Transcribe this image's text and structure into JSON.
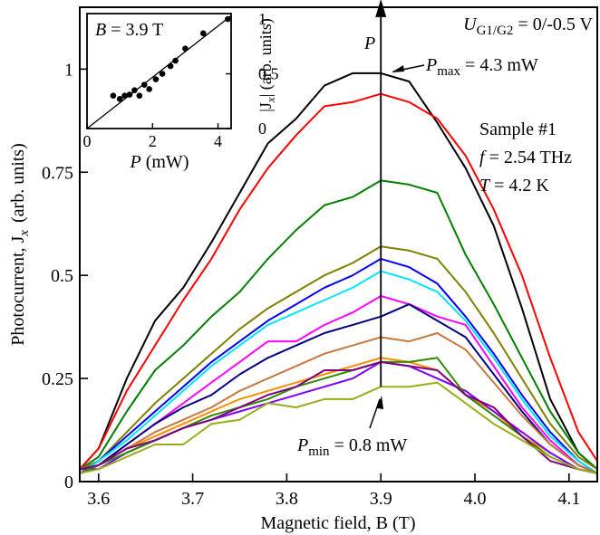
{
  "chart_data": {
    "type": "line",
    "xlabel": "Magnetic field, B (T)",
    "ylabel": "Photocurrent, J",
    "ylabel_sub": "x",
    "ylabel_units": "(arb. units)",
    "xlim": [
      3.58,
      4.13
    ],
    "ylim": [
      0,
      1.15
    ],
    "xticks": [
      {
        "v": 3.6,
        "label": "3.6"
      },
      {
        "v": 3.7,
        "label": "3.7"
      },
      {
        "v": 3.8,
        "label": "3.8"
      },
      {
        "v": 3.9,
        "label": "3.9"
      },
      {
        "v": 4.0,
        "label": "4.0"
      },
      {
        "v": 4.1,
        "label": "4.1"
      }
    ],
    "yticks": [
      {
        "v": 0,
        "label": "0"
      },
      {
        "v": 0.25,
        "label": "0.25"
      },
      {
        "v": 0.5,
        "label": "0.5"
      },
      {
        "v": 0.75,
        "label": "0.75"
      },
      {
        "v": 1.0,
        "label": "1"
      }
    ],
    "x": [
      3.58,
      3.6,
      3.63,
      3.66,
      3.69,
      3.72,
      3.75,
      3.78,
      3.81,
      3.84,
      3.87,
      3.9,
      3.93,
      3.96,
      3.99,
      4.02,
      4.05,
      4.08,
      4.11,
      4.13
    ],
    "series": [
      {
        "color": "#000000",
        "values": [
          0.03,
          0.08,
          0.25,
          0.39,
          0.47,
          0.58,
          0.7,
          0.82,
          0.88,
          0.96,
          0.99,
          0.99,
          0.97,
          0.87,
          0.76,
          0.62,
          0.42,
          0.2,
          0.07,
          0.03
        ]
      },
      {
        "color": "#ff0000",
        "values": [
          0.03,
          0.08,
          0.22,
          0.33,
          0.44,
          0.54,
          0.66,
          0.76,
          0.84,
          0.91,
          0.92,
          0.94,
          0.92,
          0.88,
          0.79,
          0.66,
          0.5,
          0.3,
          0.12,
          0.05
        ]
      },
      {
        "color": "#008000",
        "values": [
          0.03,
          0.06,
          0.17,
          0.27,
          0.33,
          0.4,
          0.46,
          0.54,
          0.61,
          0.67,
          0.69,
          0.73,
          0.72,
          0.7,
          0.55,
          0.43,
          0.3,
          0.17,
          0.07,
          0.03
        ]
      },
      {
        "color": "#808000",
        "values": [
          0.03,
          0.05,
          0.12,
          0.19,
          0.25,
          0.31,
          0.37,
          0.42,
          0.46,
          0.5,
          0.53,
          0.57,
          0.56,
          0.54,
          0.46,
          0.36,
          0.25,
          0.14,
          0.06,
          0.03
        ]
      },
      {
        "color": "#0000ff",
        "values": [
          0.02,
          0.05,
          0.11,
          0.17,
          0.23,
          0.29,
          0.34,
          0.39,
          0.43,
          0.47,
          0.5,
          0.54,
          0.52,
          0.48,
          0.4,
          0.31,
          0.21,
          0.12,
          0.05,
          0.02
        ]
      },
      {
        "color": "#00e5ff",
        "values": [
          0.02,
          0.05,
          0.1,
          0.16,
          0.22,
          0.28,
          0.33,
          0.38,
          0.41,
          0.44,
          0.47,
          0.51,
          0.49,
          0.46,
          0.39,
          0.3,
          0.2,
          0.11,
          0.05,
          0.02
        ]
      },
      {
        "color": "#ff00ff",
        "values": [
          0.02,
          0.04,
          0.09,
          0.14,
          0.19,
          0.24,
          0.29,
          0.34,
          0.34,
          0.38,
          0.41,
          0.45,
          0.43,
          0.4,
          0.38,
          0.28,
          0.18,
          0.1,
          0.04,
          0.02
        ]
      },
      {
        "color": "#000080",
        "values": [
          0.02,
          0.04,
          0.09,
          0.14,
          0.18,
          0.21,
          0.26,
          0.3,
          0.33,
          0.36,
          0.38,
          0.4,
          0.43,
          0.39,
          0.35,
          0.26,
          0.17,
          0.09,
          0.04,
          0.02
        ]
      },
      {
        "color": "#c87840",
        "values": [
          0.02,
          0.04,
          0.08,
          0.12,
          0.15,
          0.18,
          0.22,
          0.25,
          0.28,
          0.31,
          0.33,
          0.35,
          0.34,
          0.36,
          0.32,
          0.24,
          0.16,
          0.09,
          0.04,
          0.02
        ]
      },
      {
        "color": "#ff8c00",
        "values": [
          0.02,
          0.04,
          0.08,
          0.11,
          0.14,
          0.17,
          0.2,
          0.22,
          0.24,
          0.26,
          0.28,
          0.3,
          0.29,
          0.27,
          0.21,
          0.17,
          0.11,
          0.07,
          0.03,
          0.02
        ]
      },
      {
        "color": "#7f00ff",
        "values": [
          0.03,
          0.03,
          0.07,
          0.1,
          0.13,
          0.15,
          0.17,
          0.19,
          0.21,
          0.23,
          0.25,
          0.29,
          0.28,
          0.25,
          0.22,
          0.17,
          0.12,
          0.07,
          0.03,
          0.02
        ]
      },
      {
        "color": "#2e8b00",
        "values": [
          0.02,
          0.04,
          0.07,
          0.1,
          0.13,
          0.16,
          0.18,
          0.2,
          0.23,
          0.25,
          0.27,
          0.29,
          0.29,
          0.3,
          0.21,
          0.16,
          0.11,
          0.06,
          0.03,
          0.02
        ]
      },
      {
        "color": "#800080",
        "values": [
          0.03,
          0.04,
          0.08,
          0.1,
          0.13,
          0.15,
          0.18,
          0.21,
          0.23,
          0.27,
          0.27,
          0.29,
          0.28,
          0.27,
          0.21,
          0.18,
          0.11,
          0.05,
          0.03,
          0.02
        ]
      },
      {
        "color": "#9aad19",
        "values": [
          0.02,
          0.03,
          0.06,
          0.09,
          0.09,
          0.14,
          0.15,
          0.19,
          0.18,
          0.2,
          0.2,
          0.23,
          0.23,
          0.24,
          0.19,
          0.14,
          0.1,
          0.06,
          0.03,
          0.02
        ]
      }
    ],
    "arrow": {
      "x": 3.9,
      "y_from": 0.23,
      "y_to": 1.17,
      "label": "P"
    },
    "annotations": {
      "gate": {
        "prefix": "U",
        "sub": "G1/G2",
        "rest": " = 0/-0.5 V"
      },
      "pmax": {
        "prefix": "P",
        "sub": "max",
        "rest": " = 4.3 mW"
      },
      "pmin": {
        "prefix": "P",
        "sub": "min",
        "rest": " = 0.8 mW"
      },
      "sample": "Sample #1",
      "freq": {
        "prefix": "f",
        "rest": " = 2.54 THz"
      },
      "temp": {
        "prefix": "T",
        "rest": " = 4.2 K"
      }
    },
    "inset": {
      "type": "scatter",
      "label": {
        "prefix": "B",
        "rest": " = 3.9 T"
      },
      "xlabel": {
        "prefix": "P",
        "rest": " (mW)"
      },
      "ylabel": {
        "prefix": "|J",
        "sub": "x",
        "rest": "| (arb. units)"
      },
      "xlim": [
        0,
        4.4
      ],
      "ylim": [
        0,
        1.05
      ],
      "xticks": [
        {
          "v": 0,
          "label": "0"
        },
        {
          "v": 2,
          "label": "2"
        },
        {
          "v": 4,
          "label": "4"
        }
      ],
      "yticks": [
        {
          "v": 0,
          "label": "0"
        },
        {
          "v": 0.5,
          "label": "0.5"
        },
        {
          "v": 1,
          "label": "1"
        }
      ],
      "points": [
        [
          0.8,
          0.3
        ],
        [
          1.0,
          0.27
        ],
        [
          1.15,
          0.3
        ],
        [
          1.3,
          0.31
        ],
        [
          1.45,
          0.35
        ],
        [
          1.6,
          0.3
        ],
        [
          1.75,
          0.4
        ],
        [
          1.9,
          0.36
        ],
        [
          2.1,
          0.45
        ],
        [
          2.3,
          0.5
        ],
        [
          2.55,
          0.57
        ],
        [
          2.7,
          0.62
        ],
        [
          3.0,
          0.73
        ],
        [
          3.55,
          0.87
        ],
        [
          4.3,
          1.0
        ]
      ],
      "fit": [
        [
          0,
          0.0
        ],
        [
          4.4,
          1.03
        ]
      ]
    }
  }
}
